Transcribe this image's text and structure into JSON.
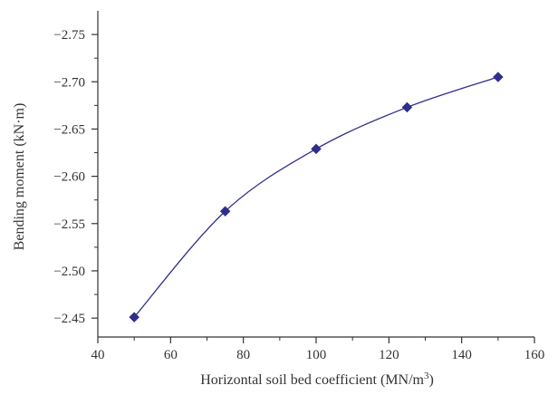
{
  "chart_data": {
    "type": "line",
    "title": "",
    "xlabel": "Horizontal soil bed coefficient (MN/m",
    "xlabel_sup": "3",
    "xlabel_close": ")",
    "ylabel": "Bending moment (kN·m)",
    "xlim": [
      40,
      160
    ],
    "ylim": [
      -2.43,
      -2.775
    ],
    "x_ticks": [
      40,
      60,
      80,
      100,
      120,
      140,
      160
    ],
    "x_tick_labels": [
      "40",
      "60",
      "80",
      "100",
      "120",
      "140",
      "160"
    ],
    "y_ticks": [
      -2.45,
      -2.5,
      -2.55,
      -2.6,
      -2.65,
      -2.7,
      -2.75
    ],
    "y_tick_labels": [
      "−2.45",
      "−2.50",
      "−2.55",
      "−2.60",
      "−2.65",
      "−2.70",
      "−2.75"
    ],
    "grid": false,
    "marker": "diamond",
    "series_color": "#2e2e8c",
    "axis_color": "#333333",
    "series": [
      {
        "x": [
          50,
          75,
          100,
          125,
          150
        ],
        "values": [
          -2.451,
          -2.563,
          -2.629,
          -2.673,
          -2.705
        ]
      }
    ]
  }
}
